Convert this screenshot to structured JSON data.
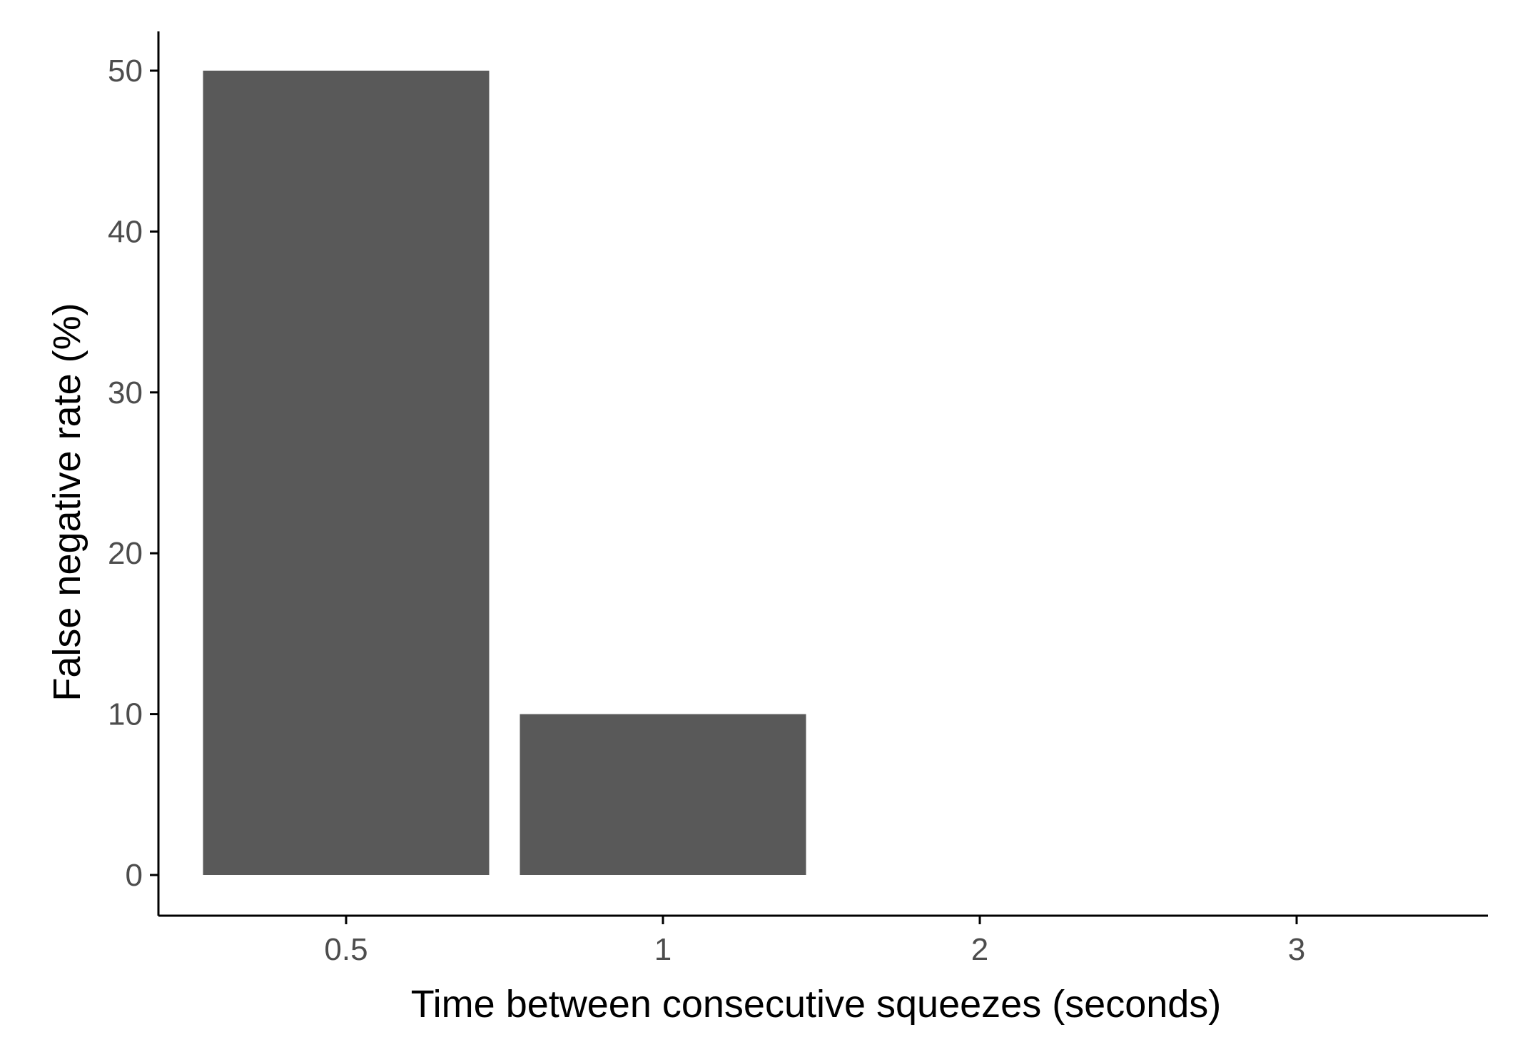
{
  "chart_data": {
    "type": "bar",
    "categories": [
      "0.5",
      "1",
      "2",
      "3"
    ],
    "values": [
      50,
      10,
      0,
      0
    ],
    "title": "",
    "xlabel": "Time between consecutive squeezes (seconds)",
    "ylabel": "False negative rate (%)",
    "ylim": [
      0,
      50
    ],
    "yticks": [
      "0",
      "10",
      "20",
      "30",
      "40",
      "50"
    ],
    "grid": false,
    "legend": "none",
    "bar_color": "#595959",
    "axis_color": "#000000",
    "tick_label_color": "#4d4d4d"
  }
}
